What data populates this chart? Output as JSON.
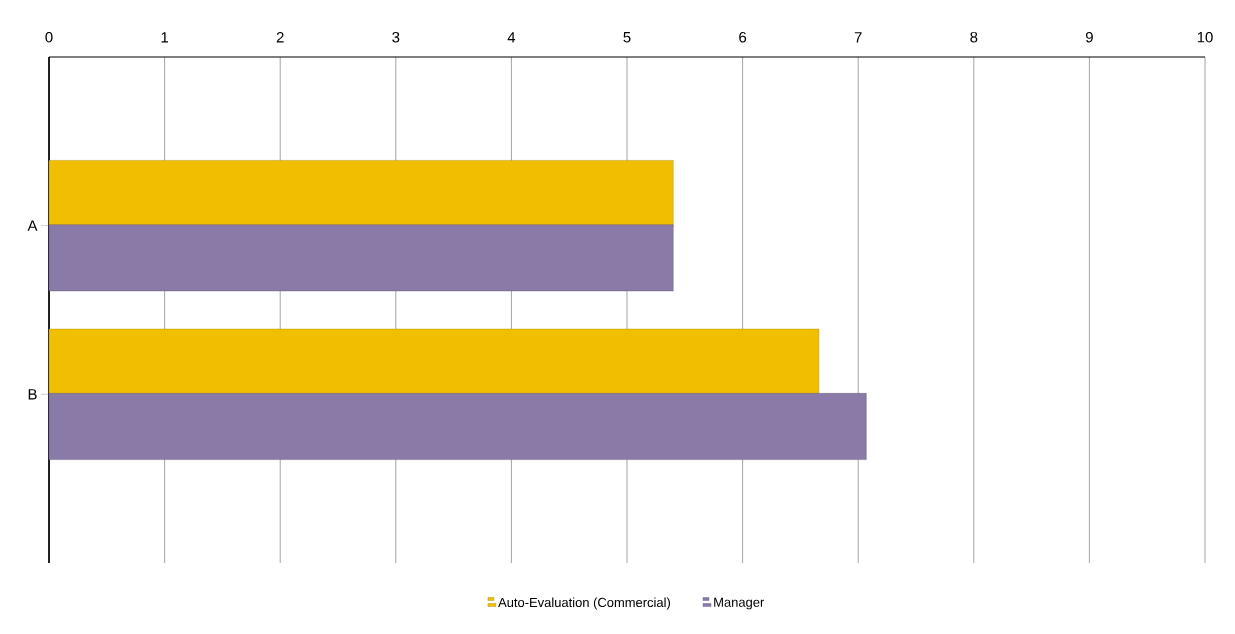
{
  "chart_data": {
    "type": "bar",
    "orientation": "horizontal",
    "categories": [
      "A",
      "B"
    ],
    "series": [
      {
        "name": "Auto-Evaluation (Commercial)",
        "color": "#f0c000",
        "values": [
          5.4,
          6.66
        ]
      },
      {
        "name": "Manager",
        "color": "#8a7aa8",
        "values": [
          5.4,
          7.07
        ]
      }
    ],
    "xlim": [
      0,
      10
    ],
    "xticks": [
      0,
      1,
      2,
      3,
      4,
      5,
      6,
      7,
      8,
      9,
      10
    ],
    "grid": "x",
    "legend": "bottom"
  }
}
